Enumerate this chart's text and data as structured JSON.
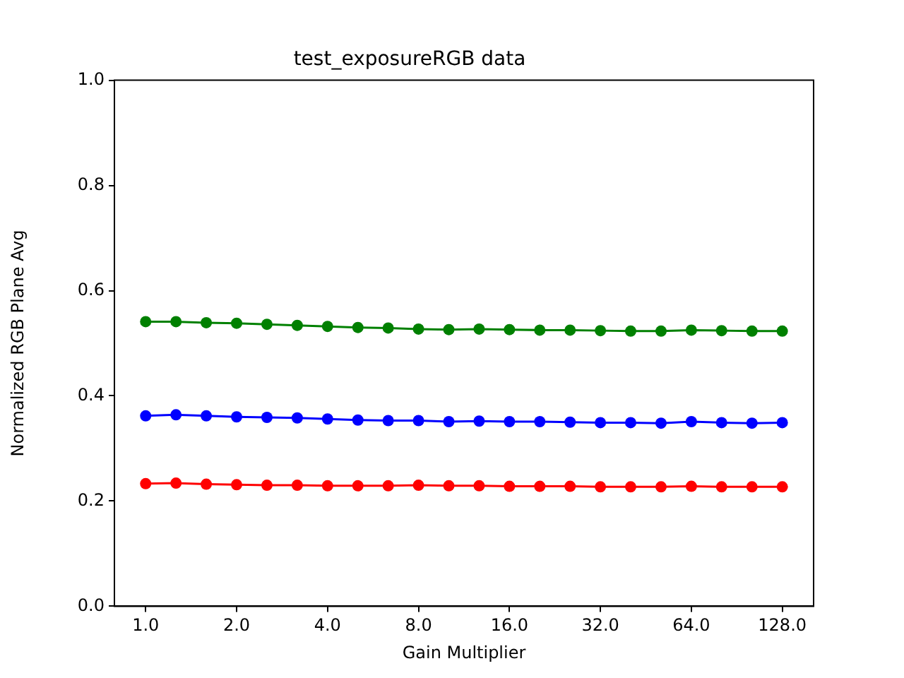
{
  "chart_data": {
    "type": "line",
    "title": "test_exposureRGB data",
    "xlabel": "Gain Multiplier",
    "ylabel": "Normalized RGB Plane Avg",
    "x": [
      1,
      1.26,
      1.587,
      2,
      2.52,
      3.175,
      4,
      5.04,
      6.35,
      8,
      10.08,
      12.7,
      16,
      20.16,
      25.4,
      32,
      40.3,
      50.8,
      64,
      80.6,
      101.6,
      128
    ],
    "series": [
      {
        "color": "#ff0000",
        "values": [
          0.233,
          0.234,
          0.232,
          0.231,
          0.23,
          0.23,
          0.229,
          0.229,
          0.229,
          0.23,
          0.229,
          0.229,
          0.228,
          0.228,
          0.228,
          0.227,
          0.227,
          0.227,
          0.228,
          0.227,
          0.227,
          0.227
        ]
      },
      {
        "color": "#008000",
        "values": [
          0.541,
          0.541,
          0.539,
          0.538,
          0.536,
          0.534,
          0.532,
          0.53,
          0.529,
          0.527,
          0.526,
          0.527,
          0.526,
          0.525,
          0.525,
          0.524,
          0.523,
          0.523,
          0.525,
          0.524,
          0.523,
          0.523
        ]
      },
      {
        "color": "#0000ff",
        "values": [
          0.362,
          0.364,
          0.362,
          0.36,
          0.359,
          0.358,
          0.356,
          0.354,
          0.353,
          0.353,
          0.351,
          0.352,
          0.351,
          0.351,
          0.35,
          0.349,
          0.349,
          0.348,
          0.351,
          0.349,
          0.348,
          0.349
        ]
      }
    ],
    "log": "x",
    "xlim": [
      0.788,
      162.5
    ],
    "xticks": [
      {
        "value": 1,
        "label": "1.0"
      },
      {
        "value": 2,
        "label": "2.0"
      },
      {
        "value": 4,
        "label": "4.0"
      },
      {
        "value": 8,
        "label": "8.0"
      },
      {
        "value": 16,
        "label": "16.0"
      },
      {
        "value": 32,
        "label": "32.0"
      },
      {
        "value": 64,
        "label": "64.0"
      },
      {
        "value": 128,
        "label": "128.0"
      }
    ],
    "ylim": [
      0,
      1
    ],
    "yticks": [
      {
        "value": 0,
        "label": "0.0"
      },
      {
        "value": 0.2,
        "label": "0.2"
      },
      {
        "value": 0.4,
        "label": "0.4"
      },
      {
        "value": 0.6,
        "label": "0.6"
      },
      {
        "value": 0.8,
        "label": "0.8"
      },
      {
        "value": 1,
        "label": "1.0"
      }
    ],
    "grid": false,
    "legend": false,
    "marker": "circle",
    "line_style": "solid"
  }
}
